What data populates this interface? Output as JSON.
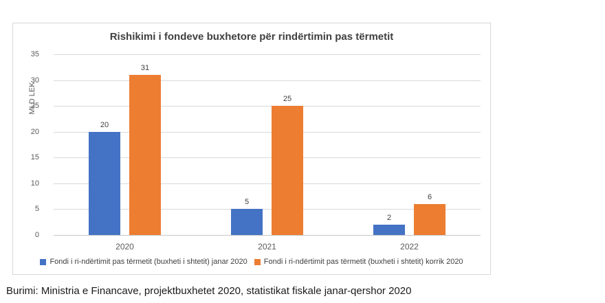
{
  "page": {
    "source_line": "Burimi: Ministria e Financave, projektbuxhetet 2020, statistikat fiskale janar-qershor 2020"
  },
  "chart_data": {
    "type": "bar",
    "title": "Rishikimi i fondeve buxhetore për rindërtimin pas tërmetit",
    "xlabel": "",
    "ylabel": "MLD LEK",
    "categories": [
      "2020",
      "2021",
      "2022"
    ],
    "series": [
      {
        "name": "Fondi i ri-ndërtimit pas tërmetit (buxheti i shtetit) janar 2020",
        "color": "#4472C4",
        "values": [
          20,
          5,
          2
        ]
      },
      {
        "name": "Fondi i ri-ndërtimit pas tërmetit (buxheti i shtetit) korrik 2020",
        "color": "#ED7D31",
        "values": [
          31,
          25,
          6
        ]
      }
    ],
    "ylim": [
      0,
      35
    ],
    "yticks": [
      0,
      5,
      10,
      15,
      20,
      25,
      30,
      35
    ],
    "grid": true,
    "legend_position": "bottom",
    "data_labels": true
  }
}
